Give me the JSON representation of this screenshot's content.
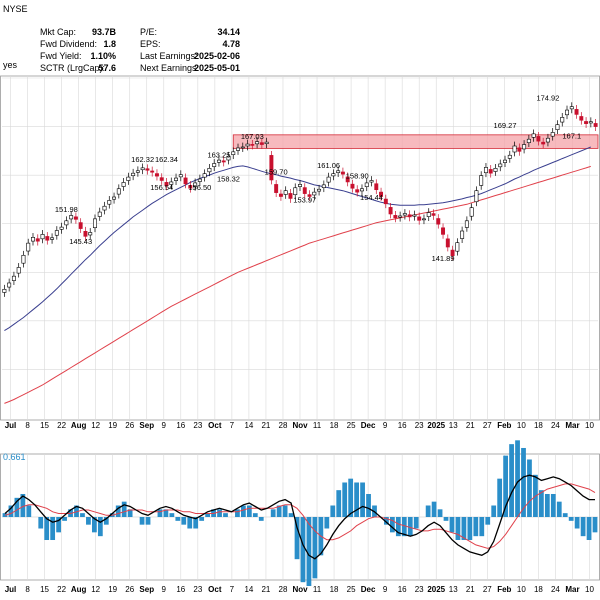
{
  "header": {
    "ticker_line": "NYSE",
    "sub_line": "yes",
    "stats": [
      {
        "label": "Mkt Cap:",
        "value": "93.7B"
      },
      {
        "label": "Fwd Dividend:",
        "value": "1.8"
      },
      {
        "label": "Fwd Yield:",
        "value": "1.10%"
      },
      {
        "label": "SCTR (LrgCap):",
        "value": "57.6"
      }
    ],
    "stats2": [
      {
        "label": "P/E:",
        "value": "34.14"
      },
      {
        "label": "EPS:",
        "value": "4.78"
      },
      {
        "label": "Last Earnings:",
        "value": "2025-02-06"
      },
      {
        "label": "Next Earnings:",
        "value": "2025-05-01"
      }
    ]
  },
  "macd_readout": "0.661",
  "colors": {
    "up": "#000000",
    "down": "#c8102e",
    "ma_short": "#3a3f8f",
    "ma_long": "#e0414b",
    "resistance": "#f4a3a8",
    "resistance_border": "#d42a36",
    "macd_line": "#000000",
    "signal_line": "#e0414b",
    "histogram": "#2a8ec9",
    "grid": "#d9d9d9"
  },
  "chart_data": {
    "type": "candlestick",
    "x_tick_labels": [
      "Jul",
      "8",
      "15",
      "22",
      "Aug",
      "12",
      "19",
      "26",
      "Sep",
      "9",
      "16",
      "23",
      "Oct",
      "7",
      "14",
      "21",
      "28",
      "Nov",
      "11",
      "18",
      "25",
      "Dec",
      "9",
      "16",
      "23",
      "2025",
      "13",
      "21",
      "27",
      "Feb",
      "10",
      "18",
      "24",
      "Mar",
      "10"
    ],
    "price_annotations": [
      "151.98",
      "145.43",
      "162.32",
      "162.34",
      "156.54",
      "156.50",
      "163.25",
      "158.32",
      "167.03",
      "159.70",
      "161.06",
      "153.97",
      "158.90",
      "154.44",
      "141.89",
      "169.27",
      "174.92",
      "167.1"
    ],
    "resistance_zone": [
      165.5,
      168.3
    ],
    "closes": [
      136.5,
      137.8,
      139.2,
      141.0,
      143.5,
      146.0,
      147.2,
      146.4,
      147.8,
      146.6,
      147.1,
      148.6,
      149.3,
      150.6,
      151.7,
      150.9,
      149.0,
      147.4,
      148.2,
      151.0,
      152.4,
      153.6,
      154.8,
      155.5,
      157.2,
      158.5,
      159.6,
      160.4,
      160.9,
      161.5,
      161.0,
      160.6,
      159.8,
      158.9,
      157.8,
      158.6,
      159.4,
      160.1,
      158.2,
      157.3,
      158.4,
      159.2,
      160.3,
      161.4,
      162.4,
      163.1,
      162.7,
      163.9,
      164.8,
      165.6,
      165.8,
      166.4,
      166.2,
      166.9,
      166.3,
      166.8,
      159.0,
      156.4,
      155.6,
      156.8,
      155.2,
      157.4,
      158.1,
      156.2,
      155.6,
      156.5,
      157.1,
      158.0,
      159.6,
      160.3,
      160.9,
      160.2,
      158.6,
      157.3,
      156.5,
      157.2,
      158.4,
      158.9,
      157.0,
      155.6,
      154.1,
      152.0,
      151.2,
      151.6,
      152.1,
      151.4,
      151.8,
      150.7,
      151.0,
      152.3,
      151.7,
      149.9,
      147.8,
      145.2,
      143.4,
      146.1,
      148.5,
      150.6,
      153.3,
      156.8,
      159.9,
      161.6,
      160.4,
      161.4,
      162.3,
      163.1,
      164.1,
      166.0,
      164.9,
      166.3,
      167.4,
      168.5,
      167.0,
      166.4,
      167.6,
      168.8,
      170.4,
      171.9,
      173.4,
      174.1,
      172.5,
      171.3,
      170.6,
      171.0,
      170.0
    ],
    "ma_short": [
      128.0,
      128.6,
      129.3,
      130.0,
      130.7,
      131.5,
      132.3,
      133.1,
      133.9,
      134.8,
      135.7,
      136.6,
      137.6,
      138.6,
      139.6,
      140.6,
      141.6,
      142.6,
      143.5,
      144.5,
      145.5,
      146.4,
      147.3,
      148.2,
      149.0,
      149.8,
      150.6,
      151.4,
      152.1,
      152.8,
      153.5,
      154.2,
      154.8,
      155.4,
      156.0,
      156.5,
      157.0,
      157.5,
      158.0,
      158.5,
      158.9,
      159.3,
      159.7,
      160.0,
      160.4,
      160.7,
      161.0,
      161.3,
      161.6,
      161.8,
      161.9,
      161.7,
      161.4,
      161.1,
      160.8,
      160.5,
      160.3,
      160.1,
      159.8,
      159.6,
      159.4,
      159.1,
      158.9,
      158.6,
      158.3,
      158.0,
      157.8,
      157.6,
      157.4,
      157.2,
      157.0,
      156.8,
      156.5,
      156.2,
      155.9,
      155.6,
      155.3,
      155.0,
      154.7,
      154.4,
      154.2,
      154.0,
      153.9,
      153.8,
      153.8,
      153.8,
      153.8,
      153.9,
      153.9,
      154.0,
      154.1,
      154.2,
      154.3,
      154.5,
      154.7,
      154.9,
      155.1,
      155.4,
      155.6,
      155.9,
      156.2,
      156.6,
      157.0,
      157.4,
      157.8,
      158.2,
      158.7,
      159.2,
      159.6,
      160.1,
      160.5,
      161.0,
      161.4,
      161.8,
      162.2,
      162.6,
      163.0,
      163.4,
      163.8,
      164.2,
      164.6,
      165.0,
      165.4,
      165.8
    ],
    "ma_long": [
      113.0,
      113.4,
      113.8,
      114.3,
      114.8,
      115.3,
      115.8,
      116.3,
      116.8,
      117.4,
      118.0,
      118.6,
      119.2,
      119.8,
      120.4,
      121.0,
      121.6,
      122.2,
      122.8,
      123.4,
      124.0,
      124.6,
      125.2,
      125.8,
      126.4,
      127.0,
      127.6,
      128.2,
      128.8,
      129.4,
      130.0,
      130.6,
      131.2,
      131.8,
      132.4,
      133.0,
      133.5,
      134.0,
      134.5,
      135.0,
      135.5,
      136.0,
      136.5,
      137.0,
      137.5,
      138.0,
      138.5,
      139.0,
      139.5,
      140.0,
      140.4,
      140.8,
      141.2,
      141.6,
      142.0,
      142.4,
      142.8,
      143.2,
      143.6,
      144.0,
      144.4,
      144.8,
      145.2,
      145.6,
      146.0,
      146.3,
      146.6,
      146.9,
      147.2,
      147.5,
      147.8,
      148.1,
      148.4,
      148.7,
      149.0,
      149.3,
      149.6,
      149.9,
      150.2,
      150.4,
      150.6,
      150.8,
      151.0,
      151.2,
      151.4,
      151.6,
      151.8,
      152.0,
      152.2,
      152.4,
      152.6,
      152.8,
      153.0,
      153.2,
      153.4,
      153.6,
      153.8,
      154.0,
      154.3,
      154.6,
      154.9,
      155.2,
      155.5,
      155.8,
      156.1,
      156.4,
      156.7,
      157.0,
      157.3,
      157.6,
      157.9,
      158.2,
      158.5,
      158.8,
      159.1,
      159.4,
      159.7,
      160.0,
      160.3,
      160.6,
      160.9,
      161.2,
      161.5,
      161.8
    ],
    "macd": [
      0.2,
      0.5,
      0.9,
      1.2,
      1.0,
      0.7,
      0.3,
      -0.1,
      -0.3,
      -0.2,
      0.1,
      0.4,
      0.6,
      0.5,
      0.2,
      -0.1,
      -0.3,
      -0.1,
      0.2,
      0.5,
      0.7,
      0.6,
      0.4,
      0.2,
      0.1,
      0.3,
      0.5,
      0.6,
      0.5,
      0.3,
      0.1,
      0.0,
      -0.1,
      0.1,
      0.3,
      0.4,
      0.5,
      0.4,
      0.3,
      0.5,
      0.7,
      0.8,
      0.6,
      0.4,
      0.5,
      0.7,
      0.9,
      1.0,
      0.8,
      -0.6,
      -1.6,
      -2.2,
      -2.4,
      -2.1,
      -1.6,
      -1.0,
      -0.5,
      -0.1,
      0.2,
      0.4,
      0.6,
      0.5,
      0.3,
      0.0,
      -0.3,
      -0.6,
      -0.9,
      -1.0,
      -1.1,
      -1.0,
      -0.8,
      -0.5,
      -0.3,
      -0.5,
      -0.9,
      -1.3,
      -1.6,
      -1.8,
      -2.0,
      -2.1,
      -2.2,
      -2.0,
      -1.4,
      -0.4,
      0.6,
      1.4,
      2.0,
      2.3,
      2.4,
      2.3,
      2.1,
      2.2,
      2.3,
      2.2,
      2.0,
      1.8,
      1.5,
      1.2,
      1.0,
      1.0
    ],
    "signal": [
      0.1,
      0.2,
      0.4,
      0.6,
      0.7,
      0.7,
      0.6,
      0.5,
      0.3,
      0.2,
      0.2,
      0.2,
      0.3,
      0.4,
      0.4,
      0.3,
      0.2,
      0.1,
      0.1,
      0.2,
      0.3,
      0.4,
      0.4,
      0.4,
      0.3,
      0.3,
      0.3,
      0.4,
      0.4,
      0.4,
      0.3,
      0.3,
      0.2,
      0.2,
      0.2,
      0.2,
      0.3,
      0.3,
      0.3,
      0.3,
      0.4,
      0.5,
      0.5,
      0.5,
      0.5,
      0.5,
      0.6,
      0.7,
      0.7,
      0.5,
      0.1,
      -0.4,
      -0.8,
      -1.1,
      -1.3,
      -1.3,
      -1.2,
      -1.0,
      -0.8,
      -0.5,
      -0.3,
      -0.1,
      0.0,
      0.0,
      -0.1,
      -0.2,
      -0.4,
      -0.5,
      -0.6,
      -0.7,
      -0.8,
      -0.8,
      -0.7,
      -0.7,
      -0.8,
      -0.9,
      -1.0,
      -1.2,
      -1.4,
      -1.6,
      -1.7,
      -1.8,
      -1.7,
      -1.4,
      -1.0,
      -0.5,
      0.0,
      0.5,
      0.9,
      1.2,
      1.4,
      1.6,
      1.7,
      1.8,
      1.9,
      1.9,
      1.8,
      1.7,
      1.6,
      1.4
    ]
  }
}
